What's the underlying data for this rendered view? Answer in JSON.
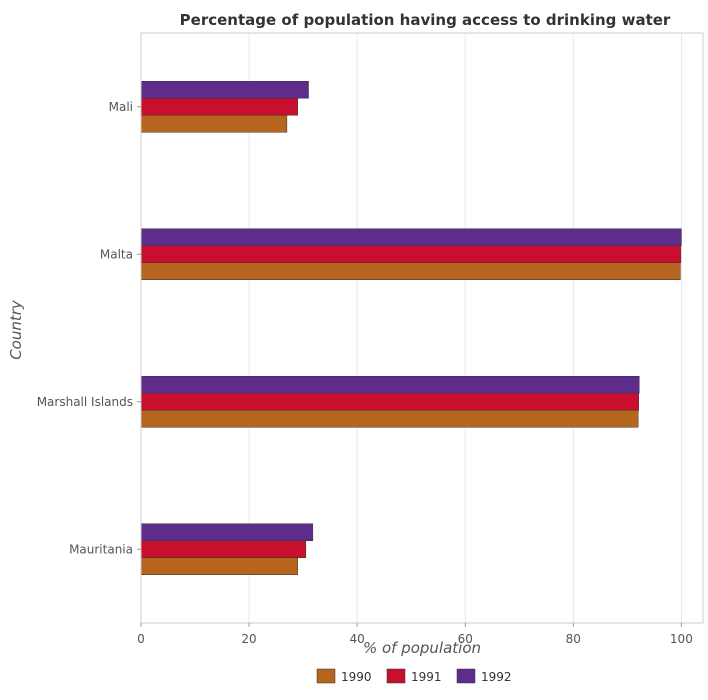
{
  "chart_data": {
    "type": "bar",
    "orientation": "horizontal",
    "title": "Percentage of population having access to drinking water",
    "xlabel": "% of population",
    "ylabel": "Country",
    "xlim": [
      0,
      104
    ],
    "xticks": [
      0,
      20,
      40,
      60,
      80,
      100
    ],
    "categories": [
      "Mali",
      "Malta",
      "Marshall Islands",
      "Mauritania"
    ],
    "series": [
      {
        "name": "1990",
        "color": "#b5651d",
        "values": [
          27,
          99.8,
          92,
          29
        ]
      },
      {
        "name": "1991",
        "color": "#c8102e",
        "values": [
          29,
          99.9,
          92.1,
          30.5
        ]
      },
      {
        "name": "1992",
        "color": "#5e2d8c",
        "values": [
          31,
          100,
          92.2,
          31.8
        ]
      }
    ],
    "legend": "bottom-center",
    "grid": true
  }
}
